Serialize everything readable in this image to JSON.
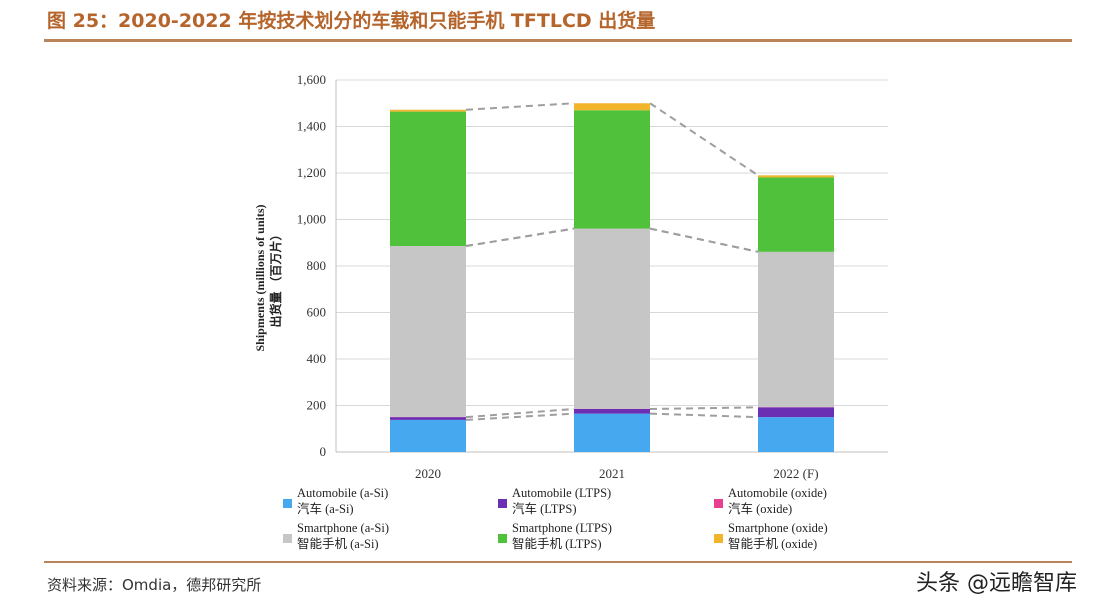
{
  "figure": {
    "title": "图 25：2020-2022 年按技术划分的车载和只能手机 TFTLCD 出货量",
    "source": "资料来源：Omdia，德邦研究所",
    "watermark": "头条 @远瞻智库"
  },
  "colors": {
    "title": "#b5652b",
    "rule": "#b9845a"
  },
  "chart_data": {
    "type": "bar",
    "stacked": true,
    "categories": [
      "2020",
      "2021",
      "2022 (F)"
    ],
    "ylabel": "Shipments (millions of units)",
    "ylabel_cn": "出货量 （百万片）",
    "ylim": [
      0,
      1600
    ],
    "yticks": [
      0,
      200,
      400,
      600,
      800,
      1000,
      1200,
      1400,
      1600
    ],
    "ytick_labels": [
      "0",
      "200",
      "400",
      "600",
      "800",
      "1,000",
      "1,200",
      "1,400",
      "1,600"
    ],
    "series": [
      {
        "name": "Automobile (a-Si)",
        "name_cn": "汽车 (a-Si)",
        "color": "#46a9f0",
        "values": [
          138,
          165,
          150
        ]
      },
      {
        "name": "Automobile (LTPS)",
        "name_cn": "汽车 (LTPS)",
        "color": "#6b2fb3",
        "values": [
          12,
          20,
          42
        ]
      },
      {
        "name": "Automobile (oxide)",
        "name_cn": "汽车 (oxide)",
        "color": "#e83f8f",
        "values": [
          1,
          1,
          1
        ]
      },
      {
        "name": "Smartphone (a-Si)",
        "name_cn": "智能手机 (a-Si)",
        "color": "#c6c6c6",
        "values": [
          735,
          775,
          668
        ]
      },
      {
        "name": "Smartphone (LTPS)",
        "name_cn": "智能手机 (LTPS)",
        "color": "#4fc13a",
        "values": [
          578,
          509,
          320
        ]
      },
      {
        "name": "Smartphone (oxide)",
        "name_cn": "智能手机 (oxide)",
        "color": "#f2b42b",
        "values": [
          8,
          30,
          9
        ]
      }
    ],
    "connectors": "dashed gray lines joining stack boundaries between adjacent bars"
  }
}
